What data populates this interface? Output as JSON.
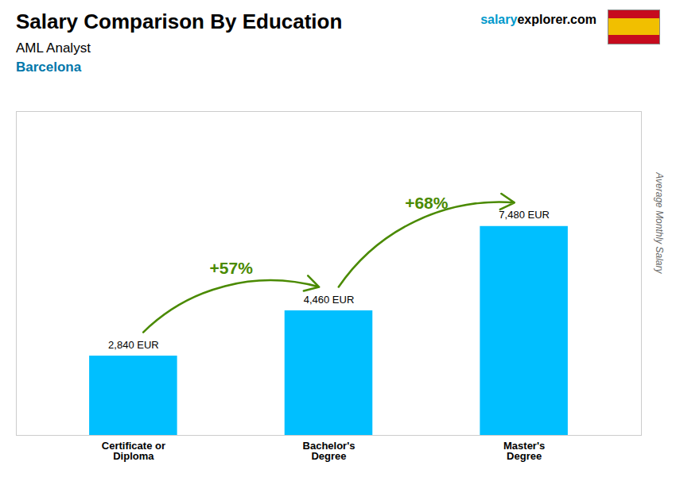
{
  "chart_data": {
    "type": "bar",
    "title": "Salary Comparison By Education",
    "subtitle": [
      "AML Analyst",
      "Barcelona"
    ],
    "watermark": [
      "salary",
      "explorer.com"
    ],
    "ylabel": "Average Monthly Salary",
    "categories": [
      "Certificate or\nDiploma",
      "Bachelor's\nDegree",
      "Master's\nDegree"
    ],
    "values": [
      2840,
      4460,
      7480
    ],
    "value_labels": [
      "2,840 EUR",
      "4,460 EUR",
      "7,480 EUR"
    ],
    "data_labels": true,
    "annotations": [
      "+57%",
      "+68%"
    ],
    "color": "#00bfff",
    "ylim": [
      0,
      11594
    ],
    "tick_labels": "x",
    "grid": false
  }
}
